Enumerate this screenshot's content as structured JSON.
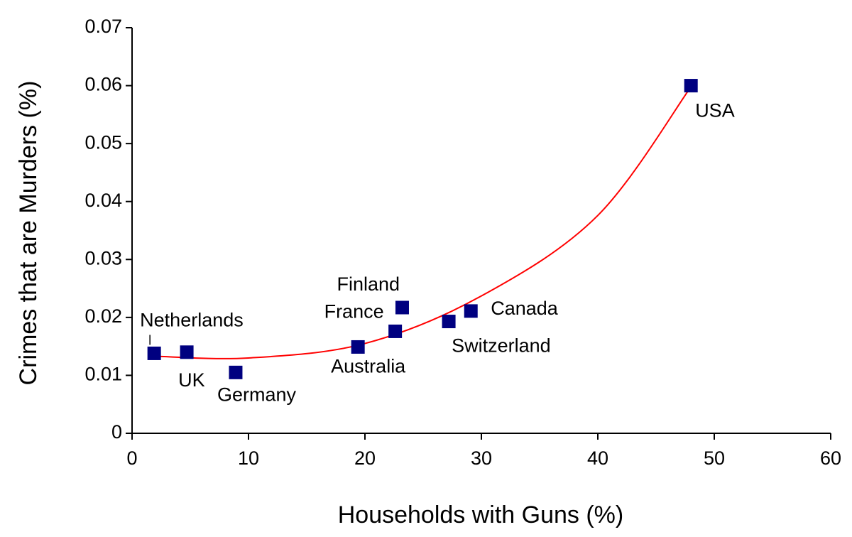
{
  "chart_data": {
    "type": "scatter",
    "title": "",
    "xlabel": "Households with Guns (%)",
    "ylabel": "Crimes that are Murders (%)",
    "xlim": [
      0,
      60
    ],
    "ylim": [
      0,
      0.07
    ],
    "x_ticks": [
      0,
      10,
      20,
      30,
      40,
      50,
      60
    ],
    "y_ticks": [
      0,
      0.01,
      0.02,
      0.03,
      0.04,
      0.05,
      0.06,
      0.07
    ],
    "x_tick_labels": [
      "0",
      "10",
      "20",
      "30",
      "40",
      "50",
      "60"
    ],
    "y_tick_labels": [
      "0",
      "0.01",
      "0.02",
      "0.03",
      "0.04",
      "0.05",
      "0.06",
      "0.07"
    ],
    "grid": false,
    "legend": "none",
    "point_color": "#000080",
    "trend_color": "#ff0000",
    "points": [
      {
        "label": "Netherlands",
        "x": 1.9,
        "y": 0.0138
      },
      {
        "label": "UK",
        "x": 4.7,
        "y": 0.014
      },
      {
        "label": "Germany",
        "x": 8.9,
        "y": 0.0105
      },
      {
        "label": "Australia",
        "x": 19.4,
        "y": 0.0149
      },
      {
        "label": "France",
        "x": 22.6,
        "y": 0.0176
      },
      {
        "label": "Finland",
        "x": 23.2,
        "y": 0.0217
      },
      {
        "label": "Switzerland",
        "x": 27.2,
        "y": 0.0193
      },
      {
        "label": "Canada",
        "x": 29.1,
        "y": 0.0211
      },
      {
        "label": "USA",
        "x": 48.0,
        "y": 0.06
      }
    ],
    "trendline": {
      "type": "polynomial",
      "x_range": [
        2,
        48
      ],
      "sample_points": [
        [
          2,
          0.0133
        ],
        [
          10,
          0.013
        ],
        [
          20,
          0.0155
        ],
        [
          30,
          0.0237
        ],
        [
          40,
          0.0376
        ],
        [
          48,
          0.0598
        ]
      ]
    }
  }
}
